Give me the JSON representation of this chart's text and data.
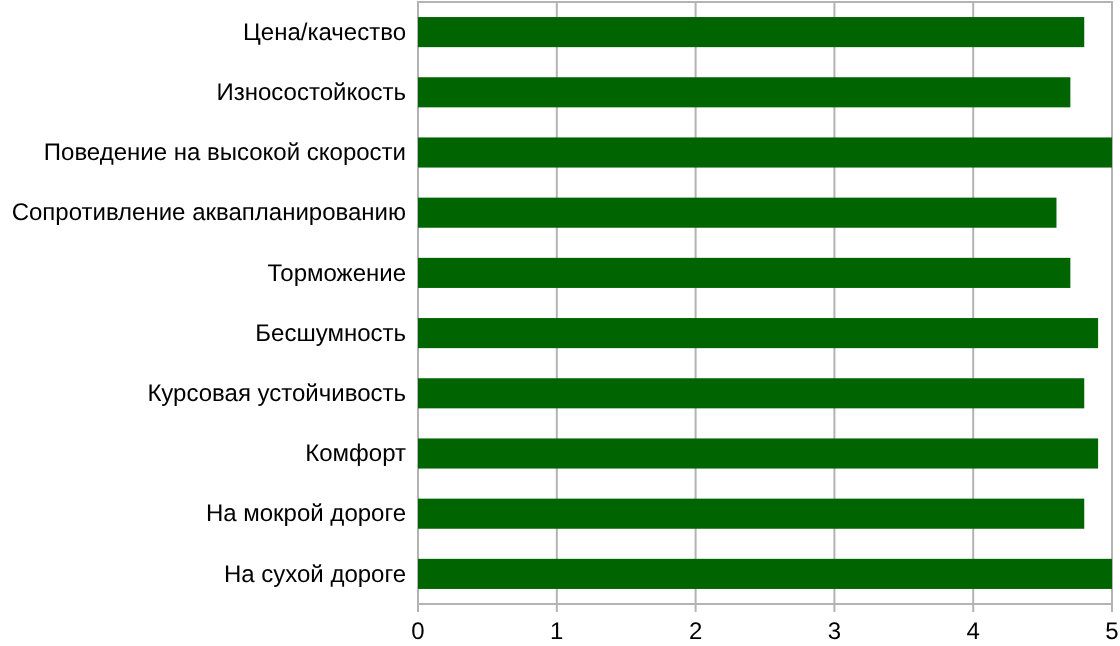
{
  "chart_data": {
    "type": "bar",
    "orientation": "horizontal",
    "categories": [
      "Цена/качество",
      "Износостойкость",
      "Поведение на высокой скорости",
      "Сопротивление аквапланированию",
      "Торможение",
      "Бесшумность",
      "Курсовая устойчивость",
      "Комфорт",
      "На мокрой дороге",
      "На сухой дороге"
    ],
    "values": [
      4.8,
      4.7,
      5,
      4.6,
      4.7,
      4.9,
      4.8,
      4.9,
      4.8,
      5
    ],
    "color": "#006400",
    "xlim": [
      0,
      5
    ],
    "xticks": [
      0,
      1,
      2,
      3,
      4,
      5
    ],
    "grid": "x"
  }
}
